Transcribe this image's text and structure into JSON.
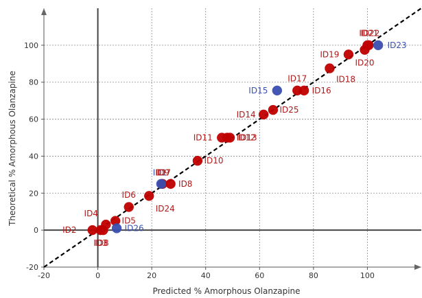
{
  "chart_data": {
    "type": "scatter",
    "xlabel": "Predicted % Amorphous Olanzapine",
    "ylabel": "Theoretical % Amorphous Olanzapine",
    "xlim": [
      -20,
      120
    ],
    "ylim": [
      -20,
      120
    ],
    "x_ticks": [
      -20,
      0,
      20,
      40,
      60,
      80,
      100
    ],
    "y_ticks": [
      -20,
      0,
      20,
      40,
      60,
      80,
      100
    ],
    "grid": true,
    "reference_line": {
      "from": [
        -20,
        -20
      ],
      "to": [
        120,
        120
      ],
      "style": "dashed"
    },
    "series": [
      {
        "color": "#c00000",
        "label_color": "#b01818",
        "points": [
          {
            "id": "ID2",
            "x": -2,
            "y": 0
          },
          {
            "id": "ID3",
            "x": 1,
            "y": 0
          },
          {
            "id": "ID8",
            "x": 2,
            "y": 0
          },
          {
            "id": "ID4",
            "x": 3,
            "y": 3
          },
          {
            "id": "ID5",
            "x": 6.5,
            "y": 5
          },
          {
            "id": "ID6",
            "x": 11.5,
            "y": 12.5
          },
          {
            "id": "ID24",
            "x": 19,
            "y": 18.5
          },
          {
            "id": "ID7",
            "x": 24,
            "y": 25
          },
          {
            "id": "ID10",
            "x": 27,
            "y": 25
          },
          {
            "id": "ID9",
            "x": 37,
            "y": 37.5
          },
          {
            "id": "ID11",
            "x": 46,
            "y": 50
          },
          {
            "id": "ID12",
            "x": 48,
            "y": 50
          },
          {
            "id": "ID13",
            "x": 49,
            "y": 50
          },
          {
            "id": "ID14",
            "x": 61.5,
            "y": 62.5
          },
          {
            "id": "ID25",
            "x": 65,
            "y": 65
          },
          {
            "id": "ID17",
            "x": 74,
            "y": 75.5
          },
          {
            "id": "ID16",
            "x": 76.5,
            "y": 75.5
          },
          {
            "id": "ID18",
            "x": 86,
            "y": 87.5
          },
          {
            "id": "ID19",
            "x": 93,
            "y": 95
          },
          {
            "id": "ID20",
            "x": 99,
            "y": 97.5
          },
          {
            "id": "ID21",
            "x": 100,
            "y": 100
          },
          {
            "id": "ID22",
            "x": 100.5,
            "y": 100
          }
        ]
      },
      {
        "color": "#3a4fb0",
        "label_color": "#3a4fb0",
        "points": [
          {
            "id": "ID26",
            "x": 7,
            "y": 1
          },
          {
            "id": "ID1",
            "x": 23.5,
            "y": 25
          },
          {
            "id": "ID15",
            "x": 66.5,
            "y": 75.5
          },
          {
            "id": "ID23",
            "x": 104,
            "y": 100
          }
        ]
      }
    ],
    "labels": [
      {
        "text": "ID2",
        "x": -10.5,
        "y": 0,
        "anchor": "middle",
        "color": "#b01818"
      },
      {
        "text": "ID3",
        "x": 1,
        "y": -7,
        "anchor": "middle",
        "color": "#b01818"
      },
      {
        "text": "ID8",
        "x": 1.5,
        "y": -7,
        "anchor": "middle",
        "color": "#b01818"
      },
      {
        "text": "ID4",
        "x": -2.5,
        "y": 9,
        "anchor": "middle",
        "color": "#b01818"
      },
      {
        "text": "ID5",
        "x": 11.5,
        "y": 5,
        "anchor": "middle",
        "color": "#b01818"
      },
      {
        "text": "ID26",
        "x": 13.5,
        "y": 1,
        "anchor": "middle",
        "color": "#3a4fb0"
      },
      {
        "text": "ID6",
        "x": 11.5,
        "y": 19,
        "anchor": "middle",
        "color": "#b01818"
      },
      {
        "text": "ID24",
        "x": 25,
        "y": 11.5,
        "anchor": "middle",
        "color": "#b01818"
      },
      {
        "text": "ID1",
        "x": 23,
        "y": 31,
        "anchor": "middle",
        "color": "#3a4fb0"
      },
      {
        "text": "ID7",
        "x": 24.5,
        "y": 31,
        "anchor": "middle",
        "color": "#b01818"
      },
      {
        "text": "ID9",
        "x": 24,
        "y": 31,
        "anchor": "middle",
        "color": "#b01818"
      },
      {
        "text": "ID8",
        "x": 32.5,
        "y": 25,
        "anchor": "middle",
        "color": "#b01818"
      },
      {
        "text": "ID10",
        "x": 43,
        "y": 37.5,
        "anchor": "middle",
        "color": "#b01818"
      },
      {
        "text": "ID11",
        "x": 39,
        "y": 50,
        "anchor": "middle",
        "color": "#b01818"
      },
      {
        "text": "ID12",
        "x": 55,
        "y": 50,
        "anchor": "middle",
        "color": "#b01818"
      },
      {
        "text": "ID13",
        "x": 55.5,
        "y": 50,
        "anchor": "middle",
        "color": "#b01818"
      },
      {
        "text": "ID14",
        "x": 55,
        "y": 62.5,
        "anchor": "middle",
        "color": "#b01818"
      },
      {
        "text": "ID25",
        "x": 71,
        "y": 65,
        "anchor": "middle",
        "color": "#b01818"
      },
      {
        "text": "ID15",
        "x": 59.5,
        "y": 75.5,
        "anchor": "middle",
        "color": "#3a4fb0"
      },
      {
        "text": "ID17",
        "x": 74,
        "y": 82,
        "anchor": "middle",
        "color": "#b01818"
      },
      {
        "text": "ID16",
        "x": 83,
        "y": 75.5,
        "anchor": "middle",
        "color": "#b01818"
      },
      {
        "text": "ID18",
        "x": 92,
        "y": 81.5,
        "anchor": "middle",
        "color": "#b01818"
      },
      {
        "text": "ID19",
        "x": 86,
        "y": 95,
        "anchor": "middle",
        "color": "#b01818"
      },
      {
        "text": "ID20",
        "x": 99,
        "y": 90.5,
        "anchor": "middle",
        "color": "#b01818"
      },
      {
        "text": "ID21",
        "x": 100.5,
        "y": 106.5,
        "anchor": "middle",
        "color": "#b01818"
      },
      {
        "text": "ID22",
        "x": 101,
        "y": 106.5,
        "anchor": "middle",
        "color": "#b01818"
      },
      {
        "text": "ID23",
        "x": 111,
        "y": 100,
        "anchor": "middle",
        "color": "#3a4fb0"
      }
    ]
  }
}
